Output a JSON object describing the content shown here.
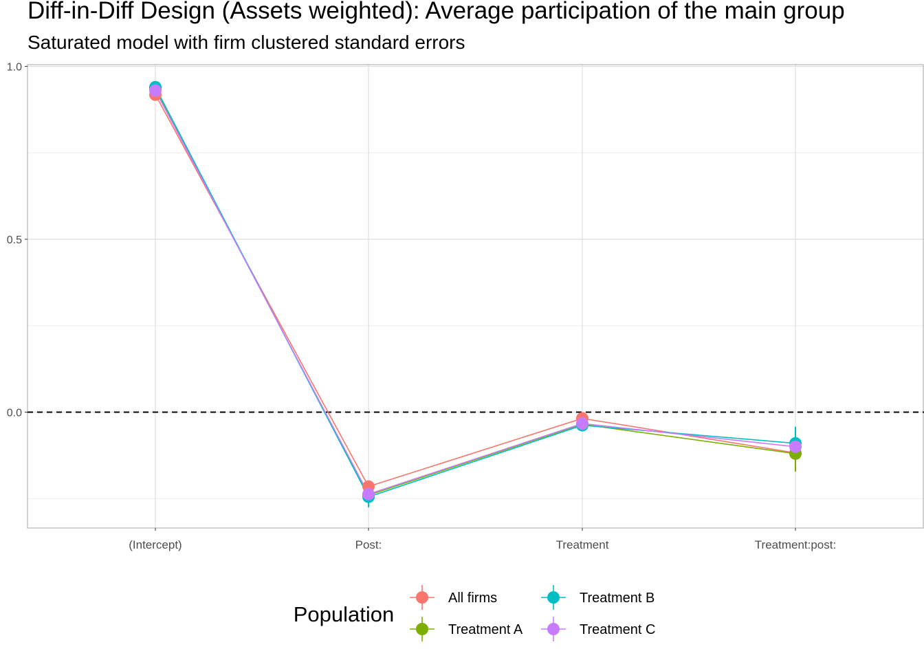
{
  "title": "Diff-in-Diff Design (Assets weighted): Average participation of the main group",
  "subtitle": "Saturated model with firm clustered standard errors",
  "chart_data": {
    "type": "line",
    "title": "Diff-in-Diff Design (Assets weighted): Average participation of the main group",
    "subtitle": "Saturated model with firm clustered standard errors",
    "xlabel": "",
    "ylabel": "",
    "categories": [
      "(Intercept)",
      "Post:",
      "Treatment",
      "Treatment:post:"
    ],
    "ylim": [
      -0.335,
      1.005
    ],
    "yticks": [
      0.0,
      0.5,
      1.0
    ],
    "ytick_labels": [
      "0.0",
      "0.5",
      "1.0"
    ],
    "grid": true,
    "reference_line": {
      "y": 0,
      "style": "dashed"
    },
    "legend": {
      "title": "Population",
      "position": "bottom"
    },
    "series": [
      {
        "name": "All firms",
        "color": "#F8766D",
        "values": [
          0.918,
          -0.215,
          -0.018,
          -0.118
        ],
        "ci_low": [
          0.908,
          -0.225,
          -0.026,
          -0.13
        ],
        "ci_high": [
          0.928,
          -0.205,
          -0.01,
          -0.106
        ]
      },
      {
        "name": "Treatment A",
        "color": "#7CAE00",
        "values": [
          0.935,
          -0.24,
          -0.035,
          -0.12
        ],
        "ci_low": [
          0.925,
          -0.252,
          -0.044,
          -0.172
        ],
        "ci_high": [
          0.945,
          -0.228,
          -0.026,
          -0.068
        ]
      },
      {
        "name": "Treatment B",
        "color": "#00BFC4",
        "values": [
          0.94,
          -0.245,
          -0.038,
          -0.09
        ],
        "ci_low": [
          0.93,
          -0.275,
          -0.047,
          -0.13
        ],
        "ci_high": [
          0.95,
          -0.215,
          -0.029,
          -0.042
        ]
      },
      {
        "name": "Treatment C",
        "color": "#C77CFF",
        "values": [
          0.93,
          -0.237,
          -0.033,
          -0.1
        ],
        "ci_low": [
          0.92,
          -0.249,
          -0.042,
          -0.116
        ],
        "ci_high": [
          0.94,
          -0.225,
          -0.024,
          -0.084
        ]
      }
    ]
  }
}
